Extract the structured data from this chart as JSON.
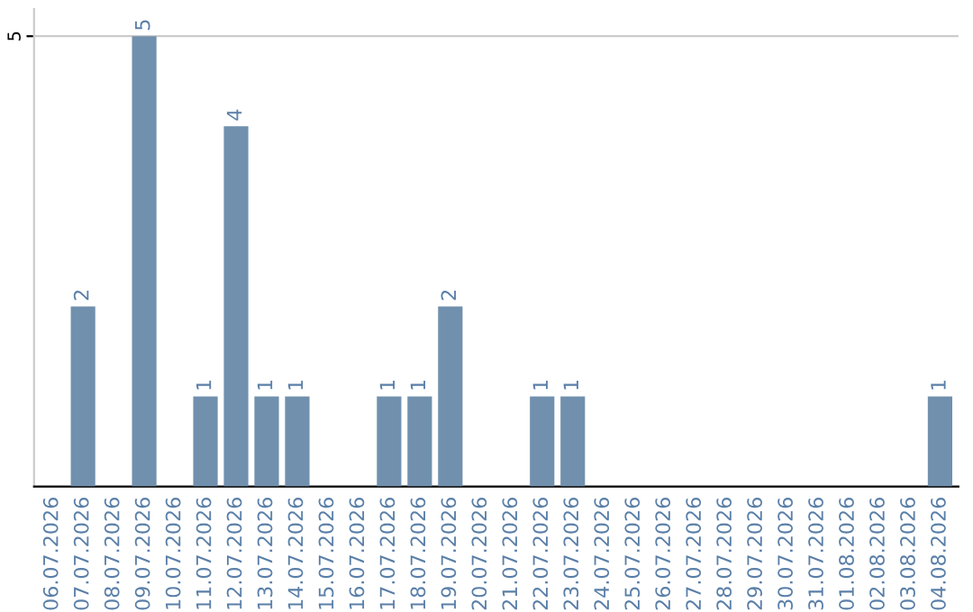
{
  "chart_data": {
    "type": "bar",
    "categories": [
      "06.07.2026",
      "07.07.2026",
      "08.07.2026",
      "09.07.2026",
      "10.07.2026",
      "11.07.2026",
      "12.07.2026",
      "13.07.2026",
      "14.07.2026",
      "15.07.2026",
      "16.07.2026",
      "17.07.2026",
      "18.07.2026",
      "19.07.2026",
      "20.07.2026",
      "21.07.2026",
      "22.07.2026",
      "23.07.2026",
      "24.07.2026",
      "25.07.2026",
      "26.07.2026",
      "27.07.2026",
      "28.07.2026",
      "29.07.2026",
      "30.07.2026",
      "31.07.2026",
      "01.08.2026",
      "02.08.2026",
      "03.08.2026",
      "04.08.2026"
    ],
    "values": [
      0,
      2,
      0,
      5,
      0,
      1,
      4,
      1,
      1,
      0,
      0,
      1,
      1,
      2,
      0,
      0,
      1,
      1,
      0,
      0,
      0,
      0,
      0,
      0,
      0,
      0,
      0,
      0,
      0,
      1
    ],
    "value_labels": [
      null,
      "2",
      null,
      "5",
      null,
      "1",
      "4",
      "1",
      "1",
      null,
      null,
      "1",
      "1",
      "2",
      null,
      null,
      "1",
      "1",
      null,
      null,
      null,
      null,
      null,
      null,
      null,
      null,
      null,
      null,
      null,
      "1"
    ],
    "color": "#7090ae",
    "ylim": [
      0,
      5.3
    ],
    "yticks": [
      5
    ],
    "grid": "y"
  }
}
